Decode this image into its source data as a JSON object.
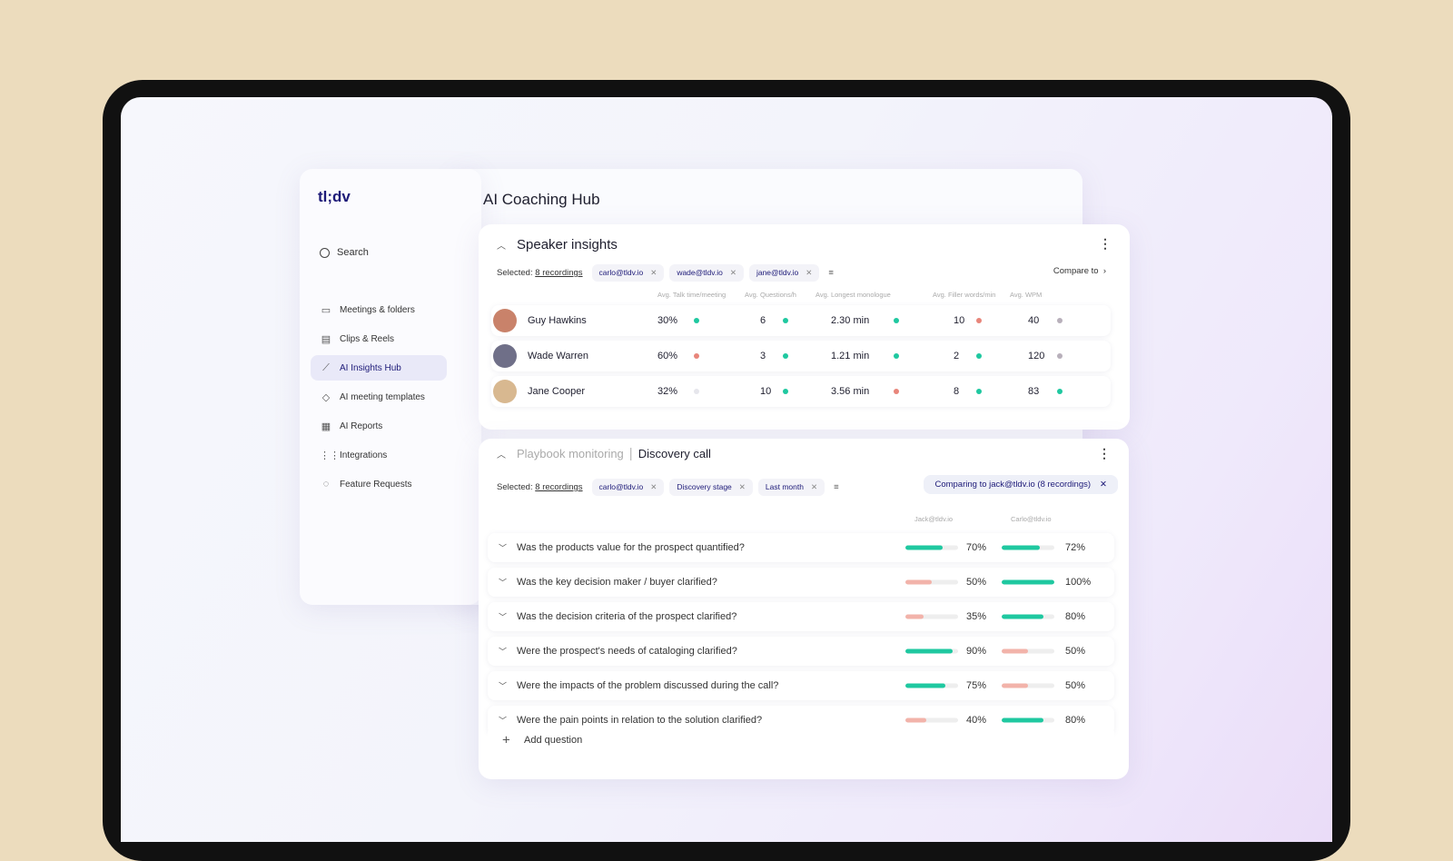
{
  "app": {
    "logo": "tl;dv",
    "page_title": "AI Coaching Hub"
  },
  "sidebar": {
    "search": "Search",
    "items": [
      {
        "label": "Meetings & folders",
        "icon": "video-icon"
      },
      {
        "label": "Clips & Reels",
        "icon": "clapper-icon"
      },
      {
        "label": "AI Insights Hub",
        "icon": "chart-icon",
        "active": true
      },
      {
        "label": "AI meeting templates",
        "icon": "tag-icon"
      },
      {
        "label": "AI Reports",
        "icon": "report-icon"
      },
      {
        "label": "Integrations",
        "icon": "grid-icon"
      },
      {
        "label": "Feature Requests",
        "icon": "bulb-icon"
      }
    ]
  },
  "speaker": {
    "title": "Speaker insights",
    "selected_label": "Selected:",
    "recordings": "8 recordings",
    "chips": [
      "carlo@tldv.io",
      "wade@tldv.io",
      "jane@tldv.io"
    ],
    "compare": "Compare to",
    "columns": [
      "Avg. Talk time/meeting",
      "Avg. Questions/h",
      "Avg. Longest monologue",
      "Avg. Filler words/min",
      "Avg. WPM"
    ],
    "rows": [
      {
        "name": "Guy Hawkins",
        "values": [
          "30%",
          "6",
          "2.30 min",
          "10",
          "40"
        ],
        "status": [
          "green",
          "green",
          "green",
          "red",
          "gray"
        ]
      },
      {
        "name": "Wade Warren",
        "values": [
          "60%",
          "3",
          "1.21 min",
          "2",
          "120"
        ],
        "status": [
          "red",
          "green",
          "green",
          "green",
          "gray"
        ]
      },
      {
        "name": "Jane Cooper",
        "values": [
          "32%",
          "10",
          "3.56 min",
          "8",
          "83"
        ],
        "status": [
          "light",
          "green",
          "red",
          "green",
          "green"
        ]
      }
    ]
  },
  "playbook": {
    "title": "Playbook monitoring",
    "separator": "|",
    "subtitle": "Discovery call",
    "selected_label": "Selected:",
    "recordings": "8 recordings",
    "chips": [
      "carlo@tldv.io",
      "Discovery stage",
      "Last month"
    ],
    "comparing": "Comparing to jack@tldv.io (8 recordings)",
    "columns": [
      "Jack@tldv.io",
      "Carlo@tldv.io"
    ],
    "questions": [
      {
        "text": "Was the products value for the prospect quantified?",
        "a": 70,
        "b": 72
      },
      {
        "text": "Was the key decision maker / buyer clarified?",
        "a": 50,
        "b": 100
      },
      {
        "text": "Was the decision criteria of the prospect clarified?",
        "a": 35,
        "b": 80
      },
      {
        "text": "Were the prospect's needs of cataloging clarified?",
        "a": 90,
        "b": 50
      },
      {
        "text": "Were the impacts of the problem discussed during the call?",
        "a": 75,
        "b": 50
      },
      {
        "text": "Were the pain points in relation to the solution clarified?",
        "a": 40,
        "b": 80
      }
    ],
    "add": "Add question"
  },
  "colors": {
    "green": "#1fc8a0",
    "red": "#e8857a",
    "gray": "#b8b0bb",
    "light": "#e6e6ec",
    "bar_good": "#1fc8a0",
    "bar_bad": "#f2b3aa",
    "accent": "#1d1a78"
  }
}
